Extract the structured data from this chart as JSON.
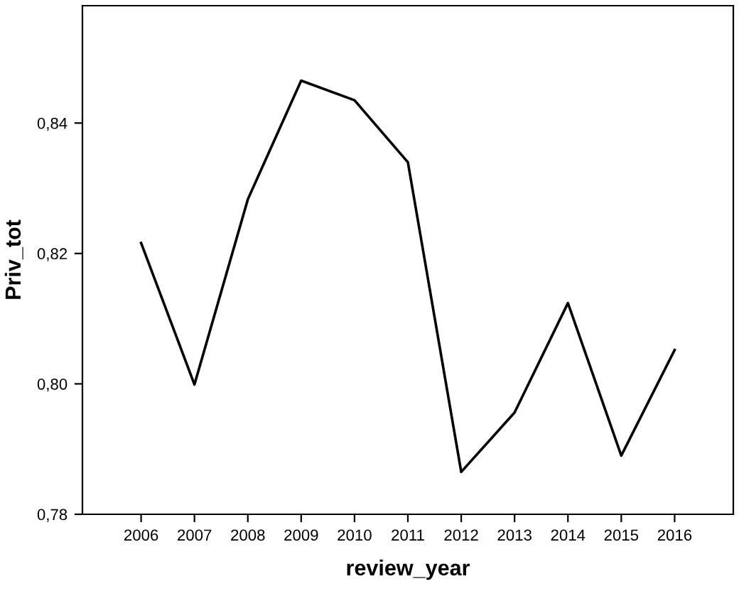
{
  "chart_data": {
    "type": "line",
    "xlabel": "review_year",
    "ylabel": "Priv_tot",
    "x": [
      2006,
      2007,
      2008,
      2009,
      2010,
      2011,
      2012,
      2013,
      2014,
      2015,
      2016
    ],
    "series": [
      {
        "color": "#000000",
        "values": [
          0.8216,
          0.7999,
          0.8283,
          0.8465,
          0.8435,
          0.834,
          0.7865,
          0.7956,
          0.8124,
          0.789,
          0.8052
        ]
      }
    ],
    "xlim": [
      2004.9,
      2017.1
    ],
    "xticks": [
      2006,
      2007,
      2008,
      2009,
      2010,
      2011,
      2012,
      2013,
      2014,
      2015,
      2016
    ],
    "ylim": [
      0.78,
      0.858
    ],
    "yticks": [
      {
        "value": 0.78,
        "label": "0,78"
      },
      {
        "value": 0.8,
        "label": "0,80"
      },
      {
        "value": 0.82,
        "label": "0,82"
      },
      {
        "value": 0.84,
        "label": "0,84"
      }
    ],
    "grid": false,
    "legend": false,
    "marker": "none",
    "line_style": "solid"
  }
}
